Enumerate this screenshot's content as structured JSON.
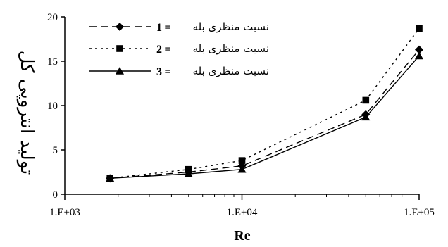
{
  "chart_data": {
    "type": "line",
    "xlabel": "Re",
    "ylabel": "تولید انتروپی کل",
    "x_scale": "log",
    "xlim": [
      1000,
      100000
    ],
    "ylim": [
      0,
      20
    ],
    "x_ticks": [
      "1.E+03",
      "1.E+04",
      "1.E+05"
    ],
    "y_ticks": [
      "0",
      "5",
      "10",
      "15",
      "20"
    ],
    "x": [
      1800,
      5000,
      10000,
      50000,
      100000
    ],
    "series": [
      {
        "name": "نسبت منظری بله",
        "legend_num": "1",
        "legend_eq": "=",
        "marker": "diamond",
        "dash": "10,6",
        "values": [
          1.8,
          2.5,
          3.2,
          9.0,
          16.3
        ]
      },
      {
        "name": "نسبت منظری بله",
        "legend_num": "2",
        "legend_eq": "=",
        "marker": "square",
        "dash": "3,5",
        "values": [
          1.8,
          2.8,
          3.8,
          10.6,
          18.7
        ]
      },
      {
        "name": "نسبت منظری بله",
        "legend_num": "3",
        "legend_eq": "=",
        "marker": "triangle",
        "dash": "none",
        "values": [
          1.8,
          2.3,
          2.8,
          8.7,
          15.6
        ]
      }
    ],
    "legend_position": "top-left",
    "grid": false
  }
}
